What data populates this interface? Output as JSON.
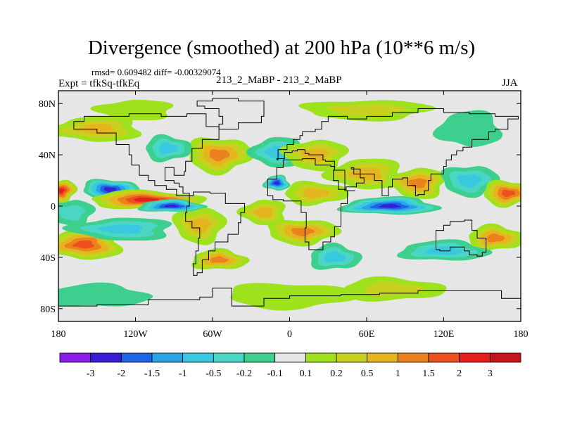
{
  "chart_data": {
    "type": "heatmap",
    "title": "Divergence (smoothed) at 200 hPa (10**6 m/s)",
    "subtitle_left_top": "rmsd= 0.609482 diff= -0.00329074",
    "subtitle_left": "Expt = tfkSq-tfkEq",
    "subtitle_center": "213_2_MaBP - 213_2_MaBP",
    "subtitle_right": "JJA",
    "x_axis": {
      "range": [
        -180,
        180
      ],
      "ticks": [
        -180,
        -120,
        -60,
        0,
        60,
        120,
        180
      ],
      "tick_labels": [
        "180",
        "120W",
        "60W",
        "0",
        "60E",
        "120E",
        "180"
      ]
    },
    "y_axis": {
      "range": [
        -90,
        90
      ],
      "ticks": [
        80,
        40,
        0,
        -40,
        -80
      ],
      "tick_labels": [
        "80N",
        "40N",
        "0",
        "40S",
        "80S"
      ]
    },
    "colorbar": {
      "levels": [
        "-3",
        "-2",
        "-1.5",
        "-1",
        "-0.5",
        "-0.2",
        "-0.1",
        "0.1",
        "0.2",
        "0.5",
        "1",
        "1.5",
        "2",
        "3"
      ],
      "colors": [
        "#8a1ee6",
        "#3a1ed6",
        "#1e64e6",
        "#2aa2e6",
        "#38c8e0",
        "#4ad6c4",
        "#3ccf8e",
        "#e6e6e6",
        "#9ee21e",
        "#c8d21e",
        "#e6b41e",
        "#eb821e",
        "#eb501e",
        "#e61e1e",
        "#c8141e"
      ]
    },
    "field_features": [
      {
        "lon": -140,
        "lat": 13,
        "level_index": 1,
        "desc": "strong convergence, central Pacific"
      },
      {
        "lon": -90,
        "lat": 0,
        "level_index": 1,
        "desc": "strong convergence, eastern Pacific"
      },
      {
        "lon": -112,
        "lat": 5,
        "level_index": 13,
        "desc": "strong divergence band, ITCZ"
      },
      {
        "lon": -170,
        "lat": 10,
        "level_index": 13,
        "desc": "divergence, dateline"
      },
      {
        "lon": -160,
        "lat": -30,
        "level_index": 12,
        "desc": "divergence, South Pacific"
      },
      {
        "lon": 78,
        "lat": 0,
        "level_index": 1,
        "desc": "strong convergence, Indian Ocean"
      },
      {
        "lon": 170,
        "lat": 10,
        "level_index": 12,
        "desc": "divergence, west Pacific"
      },
      {
        "lon": -10,
        "lat": 18,
        "level_index": 1,
        "desc": "convergence, West Africa"
      }
    ]
  }
}
